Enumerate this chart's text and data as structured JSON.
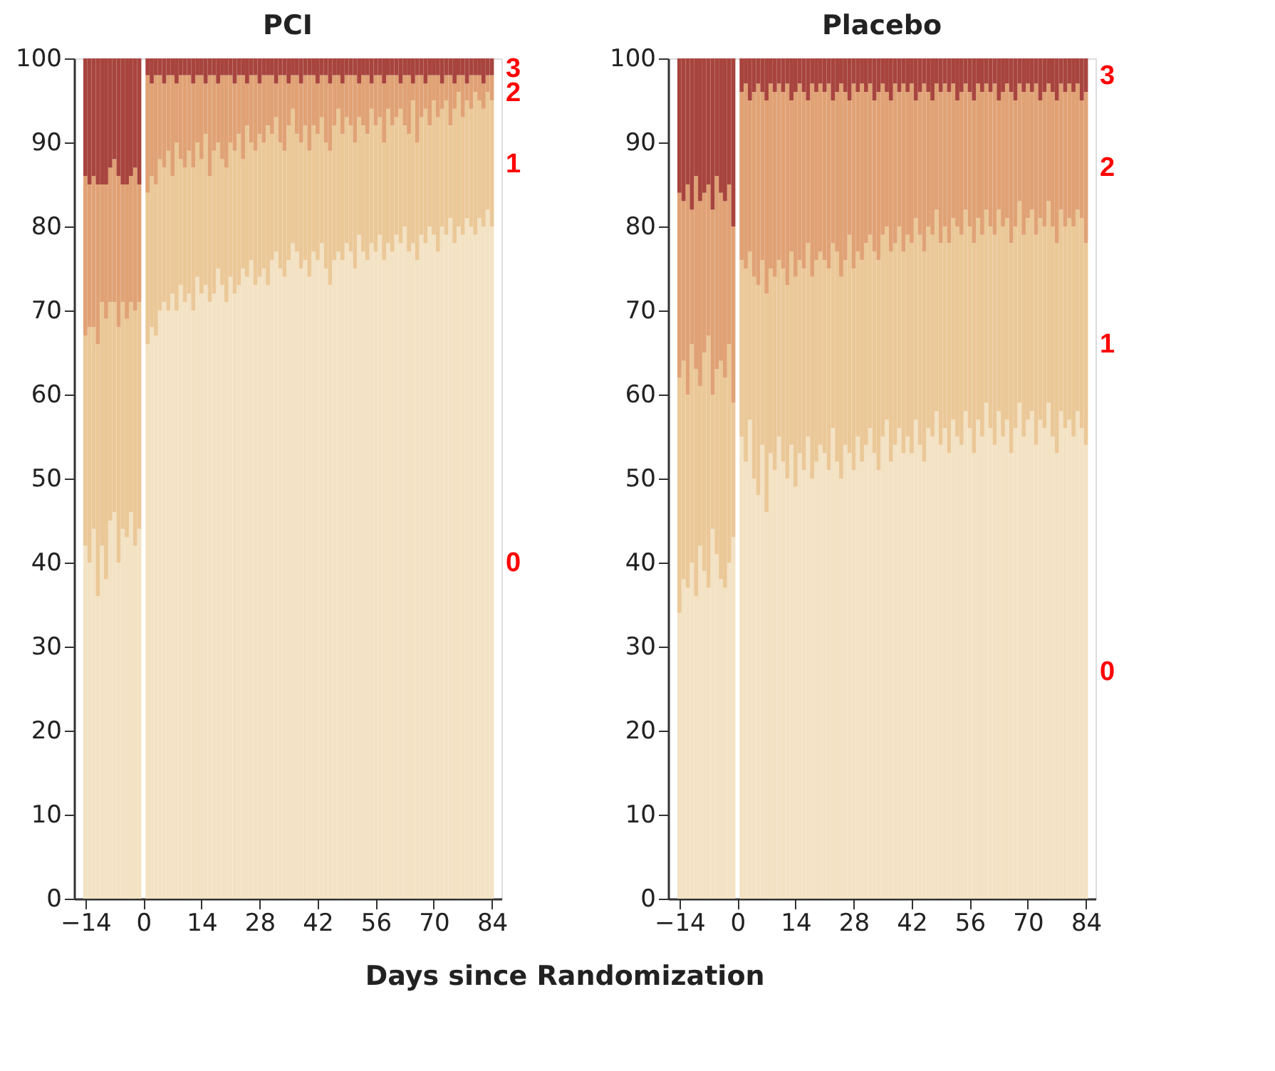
{
  "chart_data": [
    {
      "type": "bar",
      "title": "PCI",
      "xlabel": "Days since Randomization",
      "stacked": true,
      "x": [
        -14,
        -13,
        -12,
        -11,
        -10,
        -9,
        -8,
        -7,
        -6,
        -5,
        -4,
        -3,
        -2,
        -1,
        1,
        2,
        3,
        4,
        5,
        6,
        7,
        8,
        9,
        10,
        11,
        12,
        13,
        14,
        15,
        16,
        17,
        18,
        19,
        20,
        21,
        22,
        23,
        24,
        25,
        26,
        27,
        28,
        29,
        30,
        31,
        32,
        33,
        34,
        35,
        36,
        37,
        38,
        39,
        40,
        41,
        42,
        43,
        44,
        45,
        46,
        47,
        48,
        49,
        50,
        51,
        52,
        53,
        54,
        55,
        56,
        57,
        58,
        59,
        60,
        61,
        62,
        63,
        64,
        65,
        66,
        67,
        68,
        69,
        70,
        71,
        72,
        73,
        74,
        75,
        76,
        77,
        78,
        79,
        80,
        81,
        82,
        83,
        84
      ],
      "xlim": [
        -15,
        84.6
      ],
      "xticks": [
        {
          "value": -14,
          "label": "−14"
        },
        0,
        14,
        28,
        42,
        56,
        70,
        84
      ],
      "ylim": [
        0,
        100
      ],
      "yticks": [
        0,
        10,
        20,
        30,
        40,
        50,
        60,
        70,
        80,
        90,
        100
      ],
      "grid": false,
      "series": [
        {
          "name": "0",
          "color": "#f3e2c3",
          "values": [
            42,
            40,
            44,
            36,
            42,
            38,
            45,
            46,
            40,
            44,
            43,
            46,
            42,
            44,
            66,
            68,
            67,
            70,
            71,
            70,
            72,
            70,
            73,
            71,
            72,
            70,
            74,
            72,
            73,
            71,
            72,
            75,
            73,
            71,
            74,
            72,
            73,
            75,
            74,
            76,
            73,
            74,
            75,
            73,
            76,
            77,
            75,
            74,
            76,
            78,
            77,
            75,
            76,
            74,
            77,
            76,
            78,
            75,
            73,
            76,
            77,
            76,
            78,
            77,
            75,
            79,
            77,
            76,
            78,
            77,
            79,
            76,
            78,
            77,
            79,
            78,
            80,
            77,
            78,
            76,
            79,
            78,
            80,
            79,
            77,
            80,
            79,
            81,
            78,
            80,
            79,
            81,
            80,
            79,
            81,
            80,
            82,
            80
          ]
        },
        {
          "name": "1",
          "color": "#ebc898",
          "values": [
            25,
            28,
            24,
            30,
            29,
            31,
            26,
            25,
            28,
            27,
            26,
            25,
            28,
            27,
            18,
            18,
            18,
            18,
            16,
            19,
            14,
            20,
            15,
            16,
            17,
            17,
            16,
            16,
            18,
            15,
            17,
            15,
            15,
            16,
            16,
            17,
            18,
            13,
            18,
            14,
            16,
            17,
            15,
            19,
            15,
            16,
            15,
            15,
            16,
            16,
            14,
            15,
            16,
            15,
            15,
            15,
            15,
            15,
            16,
            16,
            17,
            15,
            15,
            15,
            15,
            14,
            15,
            15,
            16,
            15,
            14,
            14,
            16,
            15,
            14,
            16,
            12,
            14,
            17,
            14,
            14,
            16,
            12,
            16,
            16,
            14,
            16,
            11,
            16,
            16,
            14,
            14,
            14,
            17,
            14,
            14,
            14,
            15
          ]
        },
        {
          "name": "2",
          "color": "#e0a275",
          "values": [
            19,
            17,
            18,
            19,
            14,
            16,
            16,
            17,
            18,
            14,
            16,
            15,
            17,
            14,
            14,
            11,
            13,
            10,
            10,
            9,
            12,
            7,
            10,
            11,
            9,
            10,
            8,
            10,
            6,
            12,
            9,
            7,
            10,
            11,
            8,
            8,
            7,
            10,
            5,
            8,
            9,
            6,
            8,
            6,
            7,
            4,
            8,
            9,
            5,
            4,
            7,
            7,
            6,
            9,
            6,
            6,
            5,
            8,
            8,
            6,
            4,
            6,
            5,
            6,
            8,
            4,
            6,
            7,
            3,
            6,
            5,
            7,
            4,
            6,
            5,
            3,
            6,
            7,
            2,
            8,
            5,
            3,
            6,
            3,
            5,
            3,
            3,
            6,
            3,
            2,
            5,
            2,
            4,
            2,
            3,
            3,
            2,
            3
          ]
        },
        {
          "name": "3",
          "color": "#a8443e",
          "values": [
            14,
            15,
            14,
            15,
            15,
            15,
            13,
            12,
            14,
            15,
            15,
            14,
            13,
            15,
            2,
            3,
            2,
            2,
            3,
            2,
            2,
            3,
            2,
            2,
            2,
            3,
            2,
            2,
            3,
            2,
            2,
            3,
            2,
            2,
            2,
            3,
            2,
            2,
            3,
            2,
            2,
            3,
            2,
            2,
            2,
            3,
            2,
            2,
            3,
            2,
            2,
            3,
            2,
            2,
            2,
            3,
            2,
            2,
            3,
            2,
            2,
            3,
            2,
            2,
            2,
            3,
            2,
            2,
            3,
            2,
            2,
            3,
            2,
            2,
            2,
            3,
            2,
            2,
            3,
            2,
            2,
            3,
            2,
            2,
            2,
            3,
            2,
            2,
            3,
            2,
            2,
            3,
            2,
            2,
            2,
            3,
            2,
            2
          ]
        }
      ]
    },
    {
      "type": "bar",
      "title": "Placebo",
      "stacked": true,
      "x": [
        -14,
        -13,
        -12,
        -11,
        -10,
        -9,
        -8,
        -7,
        -6,
        -5,
        -4,
        -3,
        -2,
        -1,
        1,
        2,
        3,
        4,
        5,
        6,
        7,
        8,
        9,
        10,
        11,
        12,
        13,
        14,
        15,
        16,
        17,
        18,
        19,
        20,
        21,
        22,
        23,
        24,
        25,
        26,
        27,
        28,
        29,
        30,
        31,
        32,
        33,
        34,
        35,
        36,
        37,
        38,
        39,
        40,
        41,
        42,
        43,
        44,
        45,
        46,
        47,
        48,
        49,
        50,
        51,
        52,
        53,
        54,
        55,
        56,
        57,
        58,
        59,
        60,
        61,
        62,
        63,
        64,
        65,
        66,
        67,
        68,
        69,
        70,
        71,
        72,
        73,
        74,
        75,
        76,
        77,
        78,
        79,
        80,
        81,
        82,
        83,
        84
      ],
      "xlim": [
        -15,
        84.6
      ],
      "xticks": [
        {
          "value": -14,
          "label": "−14"
        },
        0,
        14,
        28,
        42,
        56,
        70,
        84
      ],
      "ylim": [
        0,
        100
      ],
      "yticks": [
        0,
        10,
        20,
        30,
        40,
        50,
        60,
        70,
        80,
        90,
        100
      ],
      "grid": false,
      "series": [
        {
          "name": "0",
          "color": "#f3e2c3",
          "values": [
            34,
            38,
            37,
            40,
            36,
            42,
            39,
            37,
            44,
            41,
            38,
            37,
            40,
            43,
            55,
            52,
            57,
            50,
            48,
            54,
            46,
            53,
            51,
            55,
            52,
            50,
            54,
            49,
            53,
            51,
            55,
            50,
            52,
            54,
            53,
            51,
            56,
            52,
            50,
            54,
            53,
            51,
            55,
            52,
            54,
            56,
            53,
            51,
            55,
            57,
            52,
            54,
            56,
            53,
            55,
            53,
            57,
            54,
            52,
            56,
            55,
            58,
            54,
            56,
            53,
            57,
            55,
            54,
            58,
            56,
            53,
            57,
            55,
            59,
            56,
            54,
            58,
            55,
            57,
            53,
            56,
            59,
            55,
            57,
            58,
            54,
            57,
            56,
            59,
            55,
            53,
            58,
            56,
            57,
            55,
            58,
            56,
            54
          ]
        },
        {
          "name": "1",
          "color": "#ebc898",
          "values": [
            28,
            26,
            23,
            26,
            27,
            19,
            26,
            30,
            16,
            22,
            26,
            25,
            26,
            16,
            21,
            23,
            20,
            24,
            25,
            22,
            26,
            22,
            23,
            21,
            23,
            23,
            23,
            25,
            23,
            24,
            23,
            24,
            24,
            23,
            23,
            24,
            22,
            25,
            24,
            22,
            26,
            24,
            22,
            24,
            24,
            23,
            24,
            25,
            24,
            23,
            25,
            24,
            24,
            24,
            24,
            25,
            24,
            25,
            25,
            24,
            24,
            24,
            24,
            24,
            25,
            24,
            25,
            25,
            24,
            24,
            25,
            24,
            24,
            23,
            24,
            25,
            24,
            25,
            24,
            25,
            24,
            24,
            24,
            24,
            24,
            25,
            24,
            24,
            24,
            25,
            25,
            24,
            24,
            24,
            25,
            24,
            25,
            24
          ]
        },
        {
          "name": "2",
          "color": "#e0a275",
          "values": [
            22,
            19,
            25,
            16,
            23,
            22,
            19,
            18,
            22,
            23,
            20,
            21,
            19,
            21,
            20,
            22,
            18,
            22,
            24,
            20,
            23,
            22,
            22,
            21,
            21,
            24,
            18,
            22,
            21,
            21,
            17,
            23,
            20,
            20,
            20,
            22,
            17,
            19,
            23,
            20,
            16,
            22,
            19,
            21,
            18,
            18,
            18,
            20,
            18,
            16,
            18,
            19,
            16,
            20,
            17,
            19,
            14,
            17,
            20,
            16,
            16,
            15,
            18,
            17,
            18,
            16,
            15,
            17,
            15,
            16,
            17,
            16,
            17,
            15,
            16,
            18,
            13,
            16,
            16,
            18,
            15,
            14,
            17,
            16,
            14,
            18,
            14,
            16,
            14,
            16,
            17,
            15,
            16,
            16,
            16,
            15,
            14,
            18
          ]
        },
        {
          "name": "3",
          "color": "#a8443e",
          "values": [
            16,
            17,
            15,
            18,
            14,
            17,
            16,
            15,
            18,
            14,
            16,
            17,
            15,
            20,
            4,
            3,
            5,
            4,
            3,
            4,
            5,
            3,
            4,
            3,
            4,
            3,
            5,
            4,
            3,
            4,
            5,
            3,
            4,
            3,
            4,
            3,
            5,
            4,
            3,
            4,
            5,
            3,
            4,
            3,
            4,
            3,
            5,
            4,
            3,
            4,
            5,
            3,
            4,
            3,
            4,
            3,
            5,
            4,
            3,
            4,
            5,
            3,
            4,
            3,
            4,
            3,
            5,
            4,
            3,
            4,
            5,
            3,
            4,
            3,
            4,
            3,
            5,
            4,
            3,
            4,
            5,
            3,
            4,
            3,
            4,
            3,
            5,
            4,
            3,
            4,
            5,
            3,
            4,
            3,
            4,
            3,
            5,
            4
          ]
        }
      ]
    }
  ]
}
